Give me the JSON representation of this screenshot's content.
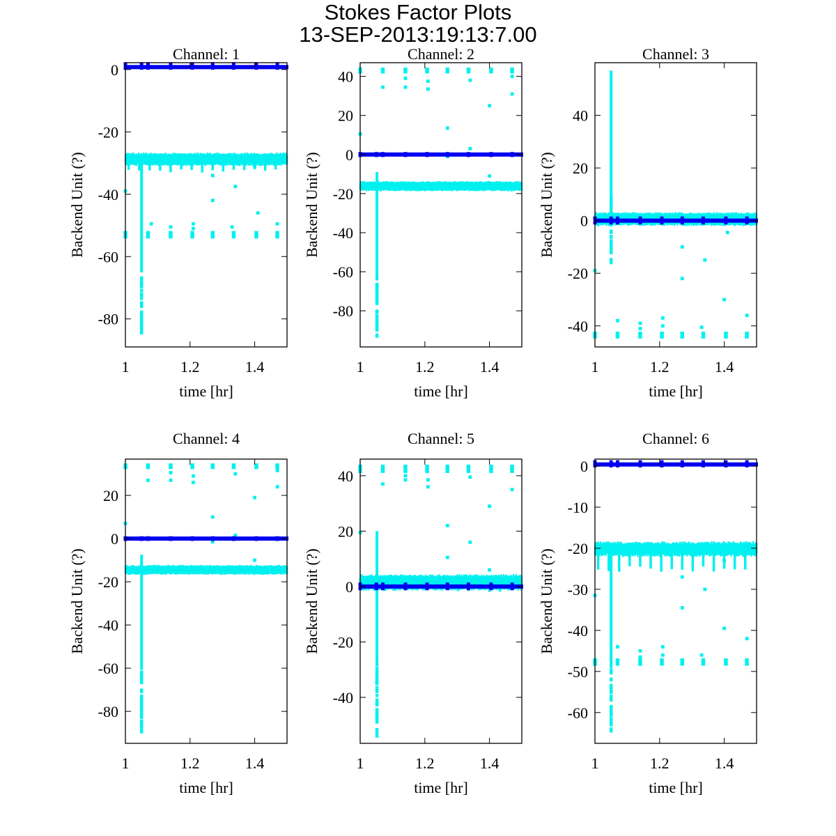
{
  "chart_data": {
    "type": "scatter",
    "title": "Stokes Factor Plots",
    "subtitle": "13-SEP-2013:19:13:7.00",
    "colors": {
      "series_a": "#00f0f0",
      "series_b": "#0000ee"
    },
    "panels": [
      {
        "title": "Channel: 1",
        "xlabel": "time [hr]",
        "ylabel": "Backend Unit (?)",
        "xlim": [
          1,
          1.5
        ],
        "ylim": [
          -89,
          2.2
        ],
        "xticks": [
          1,
          1.2,
          1.4
        ],
        "xtick_labels": [
          "1",
          "1.2",
          "1.4"
        ],
        "yticks": [
          0,
          -20,
          -40,
          -60,
          -80
        ],
        "ytick_labels": [
          "0",
          "-20",
          "-40",
          "-60",
          "-80"
        ],
        "series_a": {
          "band_center": -28.8,
          "band_halfwidth": 1.3,
          "dip_depth": -32.5,
          "spike_x": 1.05,
          "spike_range": [
            -84.5,
            -29
          ],
          "clusters_y": -53,
          "clusters_halfwidth": 1.2,
          "outliers": [
            [
              1.0,
              -39
            ],
            [
              1.27,
              -42
            ],
            [
              1.34,
              -37.5
            ],
            [
              1.41,
              -46
            ],
            [
              1.08,
              -49.5
            ],
            [
              1.21,
              -49.5
            ],
            [
              1.47,
              -49.5
            ],
            [
              1.14,
              -50.5
            ],
            [
              1.33,
              -50.5
            ],
            [
              1.21,
              -51
            ],
            [
              1.27,
              -34
            ],
            [
              1.4,
              -31
            ]
          ]
        },
        "series_b": {
          "line_y": 0.8,
          "spike_range": [
            0.5,
            1.8
          ]
        }
      },
      {
        "title": "Channel: 2",
        "xlabel": "time [hr]",
        "ylabel": "Backend Unit (?)",
        "xlim": [
          1,
          1.5
        ],
        "ylim": [
          -98.5,
          47
        ],
        "xticks": [
          1,
          1.2,
          1.4
        ],
        "xtick_labels": [
          "1",
          "1.2",
          "1.4"
        ],
        "yticks": [
          40,
          20,
          0,
          -20,
          -40,
          -60,
          -80
        ],
        "ytick_labels": [
          "40",
          "20",
          "0",
          "-20",
          "-40",
          "-60",
          "-80"
        ],
        "series_a": {
          "band_center": -16.2,
          "band_halfwidth": 1.6,
          "dip_depth": -17.5,
          "spike_x": 1.052,
          "spike_range": [
            -93,
            -9
          ],
          "clusters_y": 43,
          "clusters_halfwidth": 1.5,
          "outliers": [
            [
              1.0,
              10.5
            ],
            [
              1.07,
              34.5
            ],
            [
              1.14,
              34.5
            ],
            [
              1.14,
              39
            ],
            [
              1.21,
              33.5
            ],
            [
              1.21,
              37.5
            ],
            [
              1.27,
              13.5
            ],
            [
              1.27,
              -1
            ],
            [
              1.34,
              3
            ],
            [
              1.34,
              38
            ],
            [
              1.4,
              25
            ],
            [
              1.4,
              -11
            ],
            [
              1.47,
              31
            ],
            [
              1.47,
              40
            ]
          ]
        },
        "series_b": {
          "line_y": 0.0,
          "spike_range": [
            -0.4,
            0.4
          ]
        }
      },
      {
        "title": "Channel: 3",
        "xlabel": "time [hr]",
        "ylabel": "Backend Unit (?)",
        "xlim": [
          1,
          1.5
        ],
        "ylim": [
          -48,
          60
        ],
        "xticks": [
          1,
          1.2,
          1.4
        ],
        "xtick_labels": [
          "1",
          "1.2",
          "1.4"
        ],
        "yticks": [
          40,
          20,
          0,
          -20,
          -40
        ],
        "ytick_labels": [
          "40",
          "20",
          "0",
          "-20",
          "-40"
        ],
        "series_a": {
          "band_center": 0.6,
          "band_halfwidth": 1.6,
          "dip_depth": -1.8,
          "spike_x": 1.05,
          "spike_range": [
            -16,
            57
          ],
          "clusters_y": -43.5,
          "clusters_halfwidth": 1.3,
          "outliers": [
            [
              1.0,
              -19
            ],
            [
              1.27,
              -10
            ],
            [
              1.27,
              -22
            ],
            [
              1.34,
              -15
            ],
            [
              1.4,
              -30
            ],
            [
              1.47,
              -36
            ],
            [
              1.07,
              -38
            ],
            [
              1.14,
              -39
            ],
            [
              1.14,
              -41
            ],
            [
              1.21,
              -37
            ],
            [
              1.21,
              -40
            ],
            [
              1.33,
              -40.5
            ],
            [
              1.41,
              -4.5
            ]
          ]
        },
        "series_b": {
          "line_y": 0.0,
          "spike_range": [
            -0.8,
            0.9
          ]
        }
      },
      {
        "title": "Channel: 4",
        "xlabel": "time [hr]",
        "ylabel": "Backend Unit (?)",
        "xlim": [
          1,
          1.5
        ],
        "ylim": [
          -94.8,
          36.8
        ],
        "xticks": [
          1,
          1.2,
          1.4
        ],
        "xtick_labels": [
          "1",
          "1.2",
          "1.4"
        ],
        "yticks": [
          20,
          0,
          -20,
          -40,
          -60,
          -80
        ],
        "ytick_labels": [
          "20",
          "0",
          "-20",
          "-40",
          "-60",
          "-80"
        ],
        "series_a": {
          "band_center": -14.5,
          "band_halfwidth": 1.4,
          "dip_depth": -15.8,
          "spike_x": 1.05,
          "spike_range": [
            -89.5,
            -7.5
          ],
          "clusters_y": 33.5,
          "clusters_halfwidth": 1.3,
          "outliers": [
            [
              1.0,
              7
            ],
            [
              1.07,
              27
            ],
            [
              1.14,
              27
            ],
            [
              1.14,
              30.5
            ],
            [
              1.21,
              26
            ],
            [
              1.21,
              29
            ],
            [
              1.27,
              10
            ],
            [
              1.27,
              -1.5
            ],
            [
              1.34,
              1.5
            ],
            [
              1.34,
              30
            ],
            [
              1.4,
              19
            ],
            [
              1.4,
              -10
            ],
            [
              1.47,
              24
            ],
            [
              1.47,
              31.5
            ]
          ]
        },
        "series_b": {
          "line_y": 0.0,
          "spike_range": [
            -0.3,
            0.3
          ]
        }
      },
      {
        "title": "Channel: 5",
        "xlabel": "time [hr]",
        "ylabel": "Backend Unit (?)",
        "xlim": [
          1,
          1.5
        ],
        "ylim": [
          -56.6,
          46
        ],
        "xticks": [
          1,
          1.2,
          1.4
        ],
        "xtick_labels": [
          "1",
          "1.2",
          "1.4"
        ],
        "yticks": [
          40,
          20,
          0,
          -20,
          -40
        ],
        "ytick_labels": [
          "40",
          "20",
          "0",
          "-20",
          "-40"
        ],
        "series_a": {
          "band_center": 1.5,
          "band_halfwidth": 1.8,
          "dip_depth": -1.5,
          "spike_x": 1.052,
          "spike_range": [
            -54,
            20
          ],
          "clusters_y": 42.5,
          "clusters_halfwidth": 1.5,
          "outliers": [
            [
              1.0,
              19.5
            ],
            [
              1.07,
              37
            ],
            [
              1.14,
              38.5
            ],
            [
              1.14,
              40
            ],
            [
              1.21,
              36
            ],
            [
              1.21,
              38.5
            ],
            [
              1.27,
              22
            ],
            [
              1.27,
              10.5
            ],
            [
              1.34,
              16
            ],
            [
              1.34,
              39.5
            ],
            [
              1.4,
              29
            ],
            [
              1.4,
              6
            ],
            [
              1.47,
              35
            ]
          ]
        },
        "series_b": {
          "line_y": 0.0,
          "spike_range": [
            -0.7,
            0.8
          ]
        }
      },
      {
        "title": "Channel: 6",
        "xlabel": "time [hr]",
        "ylabel": "Backend Unit (?)",
        "xlim": [
          1,
          1.5
        ],
        "ylim": [
          -67.5,
          1.7
        ],
        "xticks": [
          1,
          1.2,
          1.4
        ],
        "xtick_labels": [
          "1",
          "1.2",
          "1.4"
        ],
        "yticks": [
          0,
          -10,
          -20,
          -30,
          -40,
          -50,
          -60
        ],
        "ytick_labels": [
          "0",
          "-10",
          "-20",
          "-30",
          "-40",
          "-50",
          "-60"
        ],
        "series_a": {
          "band_center": -20.2,
          "band_halfwidth": 1.1,
          "dip_depth": -25,
          "spike_x": 1.05,
          "spike_range": [
            -64.5,
            -21
          ],
          "clusters_y": -47.7,
          "clusters_halfwidth": 0.9,
          "outliers": [
            [
              1.0,
              -31.5
            ],
            [
              1.27,
              -27
            ],
            [
              1.27,
              -34.5
            ],
            [
              1.34,
              -30
            ],
            [
              1.4,
              -39.5
            ],
            [
              1.4,
              -23
            ],
            [
              1.47,
              -42
            ],
            [
              1.07,
              -44
            ],
            [
              1.14,
              -45
            ],
            [
              1.14,
              -46.5
            ],
            [
              1.21,
              -44
            ],
            [
              1.21,
              -46
            ],
            [
              1.33,
              -46
            ]
          ]
        },
        "series_b": {
          "line_y": 0.4,
          "spike_range": [
            0.1,
            1.0
          ]
        }
      }
    ]
  }
}
